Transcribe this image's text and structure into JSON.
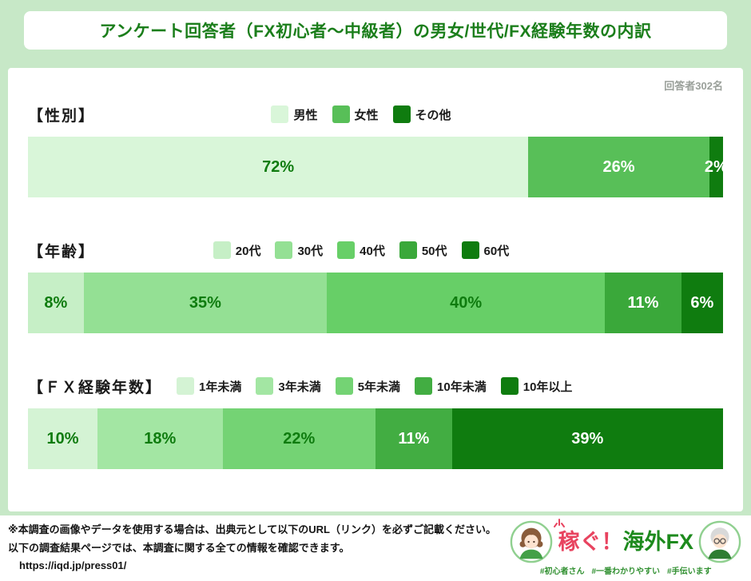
{
  "header": {
    "title": "アンケート回答者（FX初心者～中級者）の男女/世代/FX経験年数の内訳",
    "respondents": "回答者302名"
  },
  "chart_data": [
    {
      "type": "bar",
      "orientation": "horizontal_stacked",
      "title": "【性別】",
      "unit": "%",
      "categories": [
        "男性",
        "女性",
        "その他"
      ],
      "values": [
        72,
        26,
        2
      ],
      "colors": [
        "#d9f6d9",
        "#58bf58",
        "#0f7c0f"
      ],
      "label_colors": [
        "#0f7c0f",
        "#ffffff",
        "#ffffff"
      ],
      "legend_position": "center",
      "xlim": [
        0,
        100
      ]
    },
    {
      "type": "bar",
      "orientation": "horizontal_stacked",
      "title": "【年齢】",
      "unit": "%",
      "categories": [
        "20代",
        "30代",
        "40代",
        "50代",
        "60代"
      ],
      "values": [
        8,
        35,
        40,
        11,
        6
      ],
      "colors": [
        "#c6efc6",
        "#94e094",
        "#67cf67",
        "#3aa83a",
        "#0f7c0f"
      ],
      "label_colors": [
        "#0f7c0f",
        "#0f7c0f",
        "#0f7c0f",
        "#ffffff",
        "#ffffff"
      ],
      "legend_position": "center",
      "xlim": [
        0,
        100
      ]
    },
    {
      "type": "bar",
      "orientation": "horizontal_stacked",
      "title": "【ＦＸ経験年数】",
      "unit": "%",
      "categories": [
        "1年未満",
        "3年未満",
        "5年未満",
        "10年未満",
        "10年以上"
      ],
      "values": [
        10,
        18,
        22,
        11,
        39
      ],
      "colors": [
        "#d4f3d4",
        "#a3e6a3",
        "#74d374",
        "#42ad42",
        "#0f7c0f"
      ],
      "label_colors": [
        "#0f7c0f",
        "#0f7c0f",
        "#0f7c0f",
        "#ffffff",
        "#ffffff"
      ],
      "legend_position": "after_title",
      "xlim": [
        0,
        100
      ]
    }
  ],
  "footer": {
    "line1": "※本調査の画像やデータを使用する場合は、出典元として以下のURL（リンク）を必ずご記載ください。",
    "line2": "以下の調査結果ページでは、本調査に関する全ての情報を確認できます。",
    "url": "https://iqd.jp/press01/"
  },
  "logo": {
    "brand_red": "稼ぐ！",
    "brand_green": "海外FX",
    "hashtags": [
      "#初心者さん",
      "#一番わかりやすい",
      "#手伝います"
    ]
  },
  "colors": {
    "background": "#c7e8c7",
    "title_text": "#1b7e1b",
    "respondents_text": "#9aa09a"
  }
}
